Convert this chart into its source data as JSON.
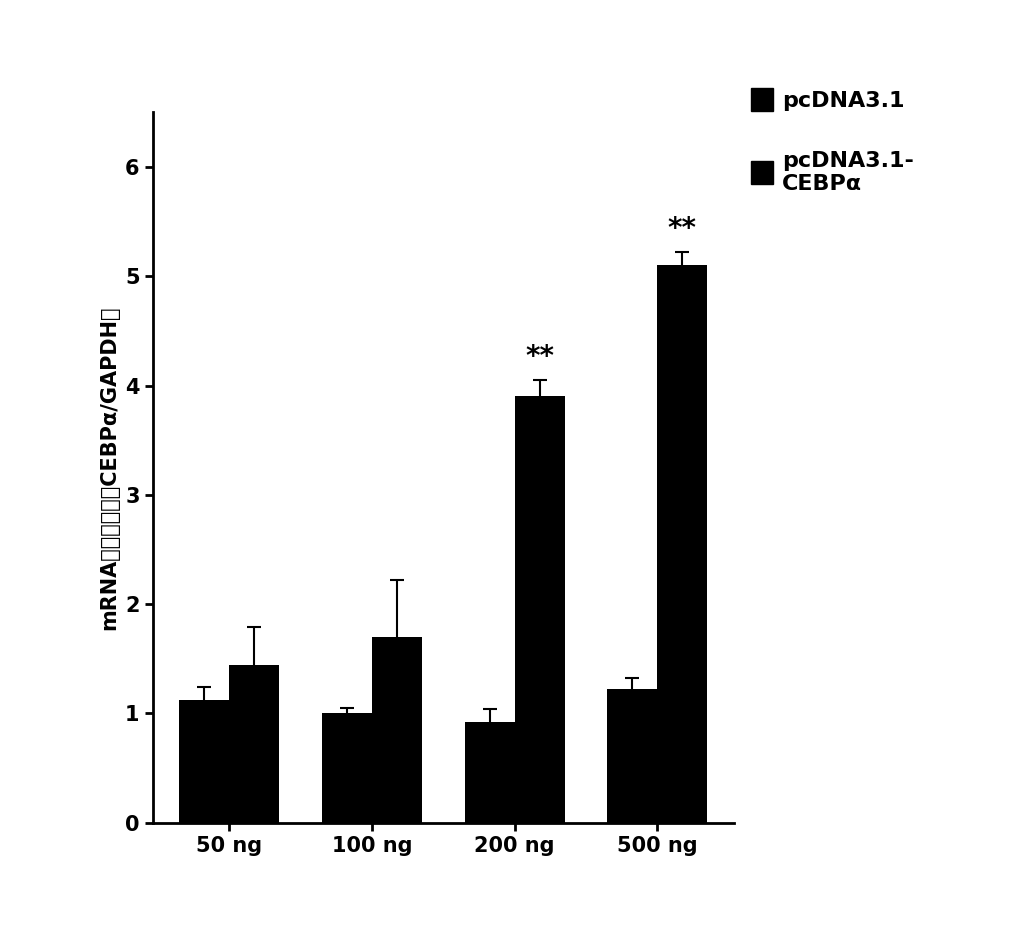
{
  "groups": [
    "50 ng",
    "100 ng",
    "200 ng",
    "500 ng"
  ],
  "pcDNA3_1_values": [
    1.12,
    1.0,
    0.92,
    1.22
  ],
  "pcDNA3_1_errors": [
    0.12,
    0.05,
    0.12,
    0.1
  ],
  "pcDNA3_1_CEBP_values": [
    1.44,
    1.7,
    3.9,
    5.1
  ],
  "pcDNA3_1_CEBP_errors": [
    0.35,
    0.52,
    0.15,
    0.12
  ],
  "bar_color": "#000000",
  "bar_width": 0.35,
  "ylabel_line1": "mRNA",
  "ylabel_chinese": "相对表达量",
  "ylabel_suffix": "(CEBPα/GAPDH)",
  "ylim": [
    0,
    6.5
  ],
  "yticks": [
    0,
    1,
    2,
    3,
    4,
    5,
    6
  ],
  "legend1": "pcDNA3.1",
  "legend2_line1": "pcDNA3.1-",
  "legend2_line2": "CEBPα",
  "significance_200ng": "**",
  "significance_500ng": "**",
  "background_color": "#ffffff",
  "label_fontsize": 15,
  "tick_fontsize": 15,
  "legend_fontsize": 16
}
